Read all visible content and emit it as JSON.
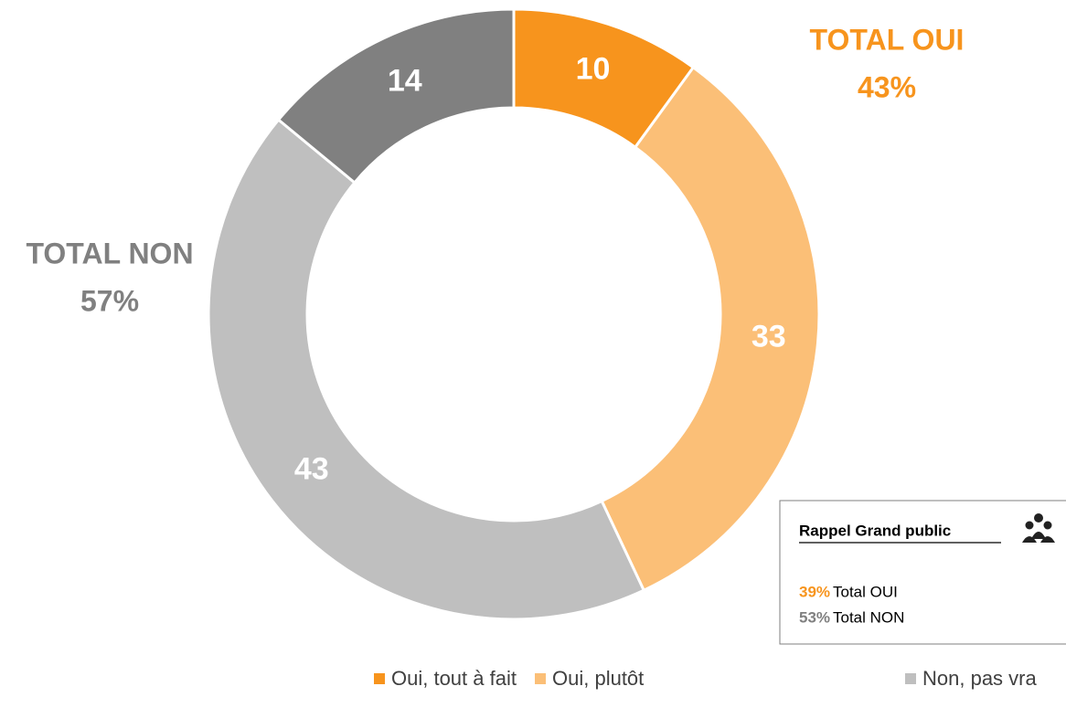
{
  "chart_data": {
    "type": "donut",
    "categories": [
      "Oui, tout à fait",
      "Oui, plutôt",
      "Non, pas vra",
      null
    ],
    "values": [
      10,
      33,
      43,
      14
    ],
    "colors": [
      "#f7941d",
      "#fbbf77",
      "#bfbfbf",
      "#808080"
    ],
    "annotations": [
      {
        "label": "TOTAL OUI",
        "value": 43,
        "value_label": "43%",
        "color": "#f7941d"
      },
      {
        "label": "TOTAL NON",
        "value": 57,
        "value_label": "57%",
        "color": "#808080"
      }
    ],
    "reminder": {
      "title": "Rappel Grand public",
      "lines": [
        {
          "value": 39,
          "value_label": "39%",
          "text": "Total OUI",
          "color": "#f7941d"
        },
        {
          "value": 53,
          "value_label": "53%",
          "text": "Total NON",
          "color": "#808080"
        }
      ]
    }
  }
}
